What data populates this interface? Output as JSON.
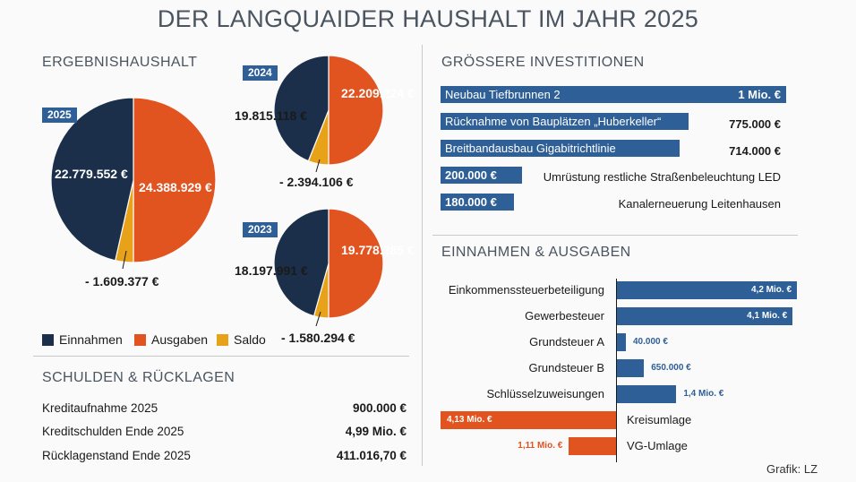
{
  "title": "DER LANGQUAIDER HAUSHALT IM JAHR 2025",
  "ergebnis": {
    "heading": "ERGEBNISHAUSHALT",
    "legend": [
      {
        "label": "Einnahmen",
        "color": "#1b2f4b"
      },
      {
        "label": "Ausgaben",
        "color": "#e1531f"
      },
      {
        "label": "Saldo",
        "color": "#e8a21a"
      }
    ]
  },
  "schulden": {
    "heading": "SCHULDEN & RÜCKLAGEN",
    "rows": [
      {
        "label": "Kreditaufnahme 2025",
        "value": "900.000 €"
      },
      {
        "label": "Kreditschulden Ende 2025",
        "value": "4,99 Mio. €"
      },
      {
        "label": "Rücklagenstand Ende 2025",
        "value": "411.016,70 €"
      }
    ]
  },
  "investitionen": {
    "heading": "GRÖSSERE INVESTITIONEN",
    "items": [
      {
        "label": "Neubau Tiefbrunnen 2",
        "value_text": "1 Mio. €",
        "value": 1000000
      },
      {
        "label": "Rücknahme von Bauplätzen „Huberkeller“",
        "value_text": "775.000 €",
        "value": 775000
      },
      {
        "label": "Breitbandausbau Gigabitrichtlinie",
        "value_text": "714.000 €",
        "value": 714000
      },
      {
        "label": "Umrüstung restliche Straßenbeleuchtung LED",
        "value_text": "200.000 €",
        "value": 200000
      },
      {
        "label": "Kanalerneuerung Leitenhausen",
        "value_text": "180.000 €",
        "value": 180000
      }
    ]
  },
  "einnahmen_ausgaben": {
    "heading": "EINNAHMEN & AUSGABEN"
  },
  "credit": "Grafik: LZ",
  "colors": {
    "einnahmen": "#1b2f4b",
    "ausgaben": "#e1531f",
    "saldo": "#e8a21a",
    "accent": "#2e5f96"
  },
  "chart_data": [
    {
      "type": "pie",
      "year": "2025",
      "slices": [
        {
          "label": "Einnahmen",
          "value": 22779552,
          "value_text": "22.779.552 €"
        },
        {
          "label": "Ausgaben",
          "value": 24388929,
          "value_text": "24.388.929 €"
        },
        {
          "label": "Saldo",
          "value": -1609377,
          "value_text": "- 1.609.377 €"
        }
      ]
    },
    {
      "type": "pie",
      "year": "2024",
      "slices": [
        {
          "label": "Einnahmen",
          "value": 19815118,
          "value_text": "19.815.118 €"
        },
        {
          "label": "Ausgaben",
          "value": 22209224,
          "value_text": "22.209.224 €"
        },
        {
          "label": "Saldo",
          "value": -2394106,
          "value_text": "- 2.394.106 €"
        }
      ]
    },
    {
      "type": "pie",
      "year": "2023",
      "slices": [
        {
          "label": "Einnahmen",
          "value": 18197991,
          "value_text": "18.197.991 €"
        },
        {
          "label": "Ausgaben",
          "value": 19778285,
          "value_text": "19.778.285 €"
        },
        {
          "label": "Saldo",
          "value": -1580294,
          "value_text": "- 1.580.294 €"
        }
      ]
    },
    {
      "type": "bar",
      "title": "EINNAHMEN & AUSGABEN",
      "categories": [
        "Einkommenssteuerbeteiligung",
        "Gewerbesteuer",
        "Grundsteuer A",
        "Grundsteuer B",
        "Schlüsselzuweisungen",
        "Kreisumlage",
        "VG-Umlage"
      ],
      "values": [
        4200000,
        4100000,
        40000,
        650000,
        1400000,
        -4130000,
        -1110000
      ],
      "value_texts": [
        "4,2 Mio. €",
        "4,1 Mio. €",
        "40.000 €",
        "650.000 €",
        "1,4 Mio. €",
        "4,13 Mio. €",
        "1,11 Mio. €"
      ],
      "types": [
        "einnahme",
        "einnahme",
        "einnahme",
        "einnahme",
        "einnahme",
        "ausgabe",
        "ausgabe"
      ]
    }
  ]
}
